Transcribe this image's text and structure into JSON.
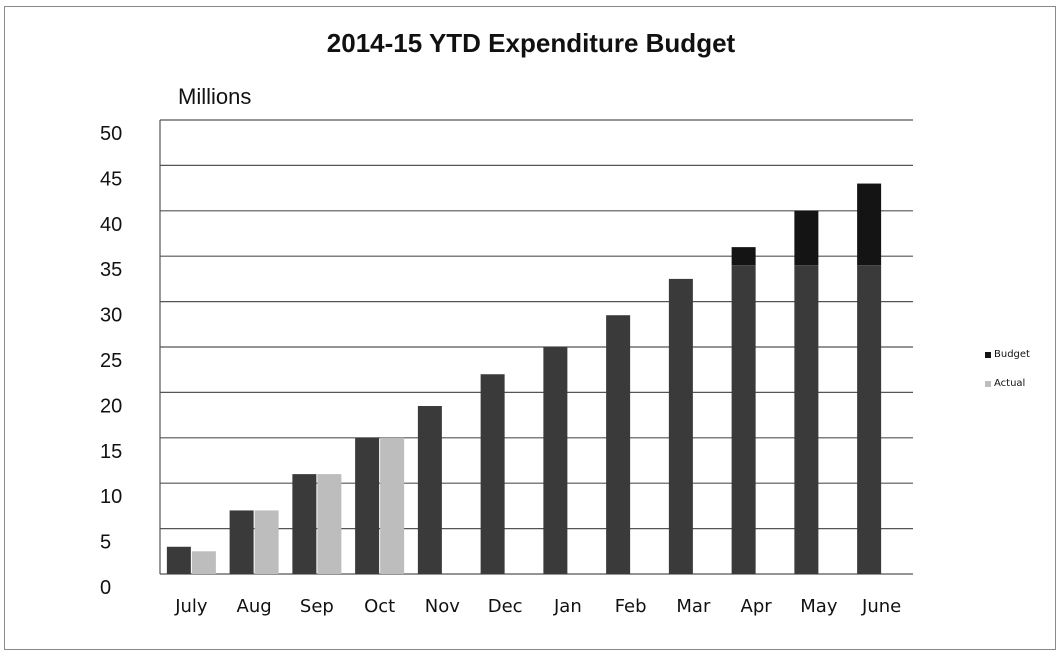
{
  "chart_data": {
    "type": "bar",
    "title": "2014-15 YTD Expenditure Budget",
    "unit_label": "Millions",
    "xlabel": "",
    "ylabel": "",
    "ylim": [
      0,
      50
    ],
    "yticks": [
      0,
      5,
      10,
      15,
      20,
      25,
      30,
      35,
      40,
      45,
      50
    ],
    "grid": true,
    "legend_position": "right",
    "categories": [
      "July",
      "Aug",
      "Sep",
      "Oct",
      "Nov",
      "Dec",
      "Jan",
      "Feb",
      "Mar",
      "Apr",
      "May",
      "June"
    ],
    "series": [
      {
        "name": "Budget",
        "color": "#3a3a3a",
        "top_color": "#141414",
        "values": [
          3.0,
          7.0,
          11.0,
          15.0,
          18.5,
          22.0,
          25.0,
          28.5,
          32.5,
          36.0,
          40.0,
          43.0
        ]
      },
      {
        "name": "Actual",
        "color": "#bdbdbd",
        "values": [
          2.5,
          7.0,
          11.0,
          15.0,
          null,
          null,
          null,
          null,
          null,
          null,
          null,
          null
        ]
      }
    ]
  }
}
